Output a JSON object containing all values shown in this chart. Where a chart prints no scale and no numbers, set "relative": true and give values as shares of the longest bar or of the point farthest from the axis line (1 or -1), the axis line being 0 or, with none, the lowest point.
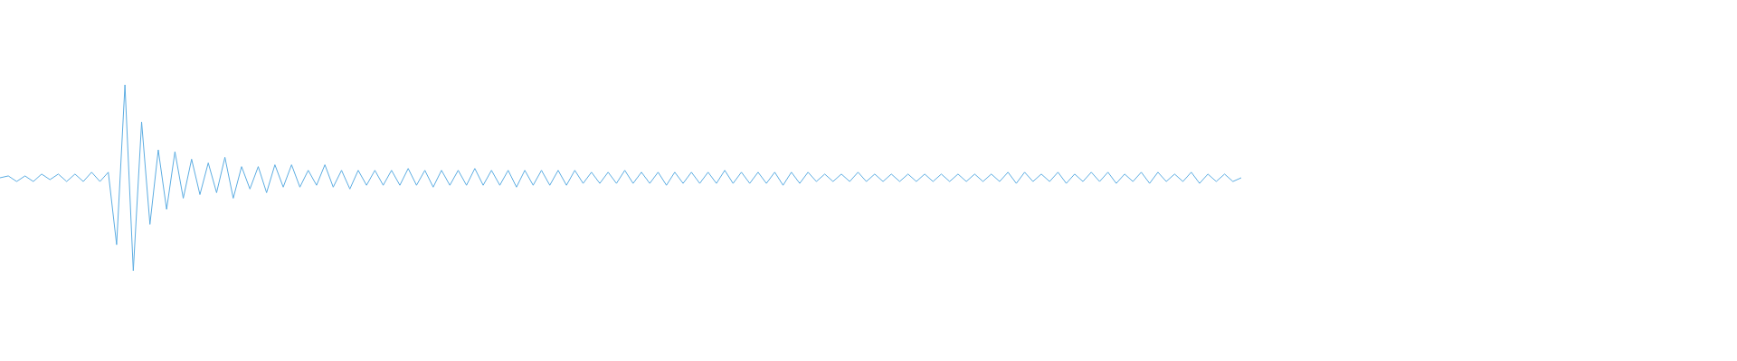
{
  "chart_data": {
    "type": "line",
    "relative": true,
    "marker": "none",
    "color": "#5dade2",
    "categories": [
      null,
      null,
      null,
      null,
      null,
      null,
      null,
      null,
      null,
      null,
      null,
      null,
      null,
      null,
      null,
      null,
      null,
      null,
      null,
      null,
      null,
      null,
      null,
      null,
      null,
      null,
      null,
      null,
      null,
      null,
      null,
      null,
      null,
      null,
      null,
      null,
      null,
      null,
      null,
      null,
      null,
      null,
      null,
      null,
      null,
      null,
      null,
      null,
      null,
      null,
      null,
      null,
      null,
      null,
      null,
      null,
      null,
      null,
      null,
      null,
      null,
      null,
      null,
      null,
      null,
      null,
      null,
      null,
      null,
      null,
      null,
      null,
      null,
      null,
      null,
      null,
      null,
      null,
      null,
      null,
      null,
      null,
      null,
      null,
      null,
      null,
      null,
      null,
      null,
      null,
      null,
      null,
      null,
      null,
      null,
      null,
      null,
      null,
      null,
      null,
      null,
      null,
      null,
      null,
      null,
      null,
      null,
      null,
      null,
      null,
      null,
      null,
      null,
      null,
      null,
      null,
      null,
      null,
      null,
      null,
      null,
      null,
      null,
      null,
      null,
      null,
      null,
      null,
      null,
      null,
      null,
      null,
      null,
      null,
      null,
      null,
      null,
      null,
      null,
      null,
      null,
      null,
      null,
      null,
      null,
      null,
      null,
      null,
      null,
      null
    ],
    "values": [
      0.5,
      0.51,
      0.48,
      0.51,
      0.48,
      0.52,
      0.49,
      0.52,
      0.48,
      0.52,
      0.48,
      0.53,
      0.48,
      0.53,
      0.14,
      1.0,
      0.0,
      0.8,
      0.25,
      0.65,
      0.33,
      0.64,
      0.39,
      0.6,
      0.41,
      0.58,
      0.42,
      0.61,
      0.39,
      0.56,
      0.44,
      0.56,
      0.42,
      0.57,
      0.45,
      0.57,
      0.45,
      0.54,
      0.46,
      0.57,
      0.45,
      0.54,
      0.44,
      0.54,
      0.46,
      0.54,
      0.46,
      0.54,
      0.46,
      0.55,
      0.46,
      0.54,
      0.45,
      0.54,
      0.46,
      0.54,
      0.46,
      0.55,
      0.46,
      0.54,
      0.46,
      0.54,
      0.45,
      0.54,
      0.46,
      0.54,
      0.46,
      0.54,
      0.46,
      0.54,
      0.47,
      0.53,
      0.47,
      0.53,
      0.47,
      0.54,
      0.47,
      0.53,
      0.47,
      0.53,
      0.46,
      0.53,
      0.47,
      0.53,
      0.47,
      0.53,
      0.47,
      0.54,
      0.47,
      0.53,
      0.47,
      0.53,
      0.47,
      0.53,
      0.46,
      0.53,
      0.47,
      0.53,
      0.48,
      0.52,
      0.48,
      0.52,
      0.48,
      0.53,
      0.48,
      0.52,
      0.48,
      0.52,
      0.48,
      0.52,
      0.48,
      0.52,
      0.48,
      0.52,
      0.48,
      0.52,
      0.48,
      0.52,
      0.48,
      0.52,
      0.48,
      0.53,
      0.47,
      0.53,
      0.48,
      0.52,
      0.48,
      0.53,
      0.47,
      0.52,
      0.48,
      0.53,
      0.48,
      0.53,
      0.47,
      0.52,
      0.48,
      0.53,
      0.47,
      0.53,
      0.48,
      0.52,
      0.48,
      0.53,
      0.47,
      0.52,
      0.48,
      0.52,
      0.48,
      0.5
    ]
  }
}
